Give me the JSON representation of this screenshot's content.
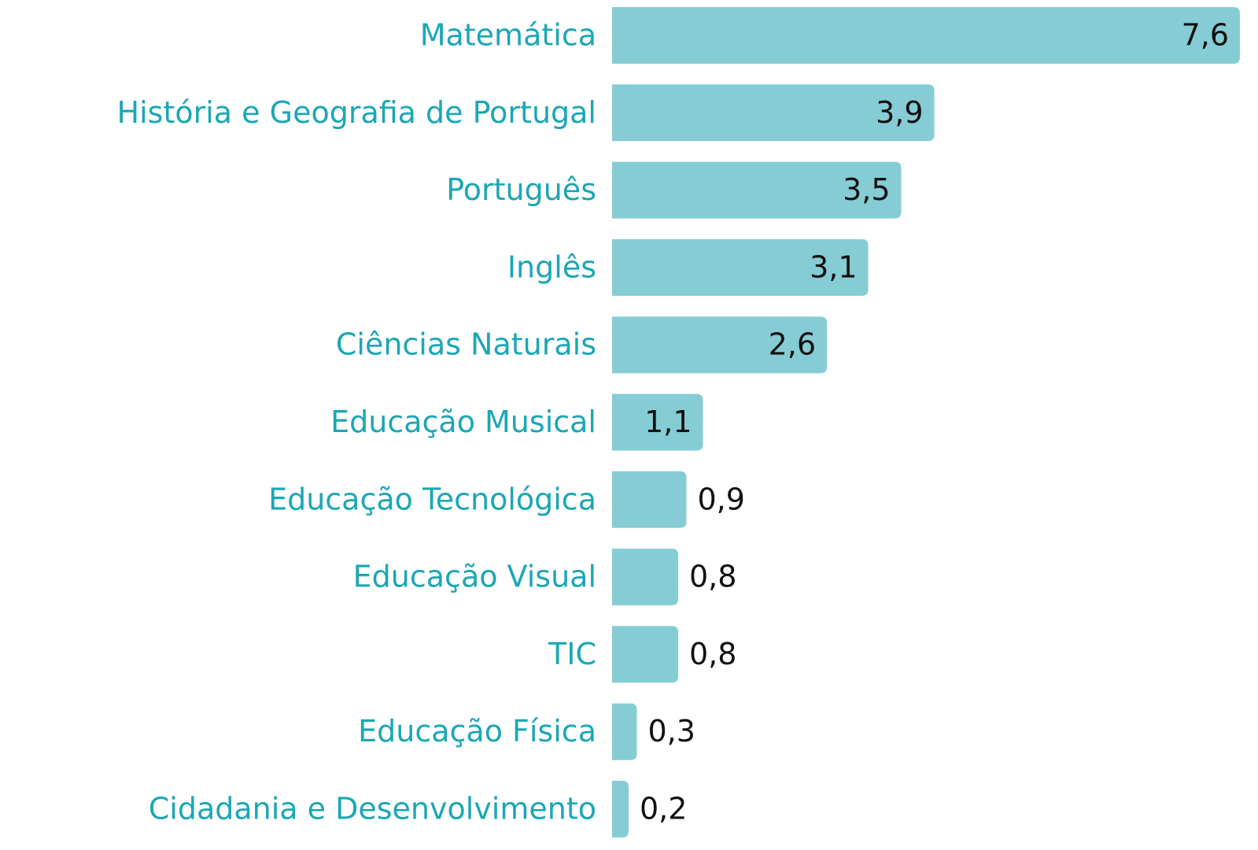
{
  "chart_data": {
    "type": "bar",
    "orientation": "horizontal",
    "color": "#86ccd5",
    "categories": [
      "Matemática",
      "História e Geografia de Portugal",
      "Português",
      "Inglês",
      "Ciências Naturais",
      "Educação Musical",
      "Educação Tecnológica",
      "Educação Visual",
      "TIC",
      "Educação Física",
      "Cidadania e Desenvolvimento"
    ],
    "values": [
      7.6,
      3.9,
      3.5,
      3.1,
      2.6,
      1.1,
      0.9,
      0.8,
      0.8,
      0.3,
      0.2
    ],
    "value_labels": [
      "7,6",
      "3,9",
      "3,5",
      "3,1",
      "2,6",
      "1,1",
      "0,9",
      "0,8",
      "0,8",
      "0,3",
      "0,2"
    ]
  }
}
